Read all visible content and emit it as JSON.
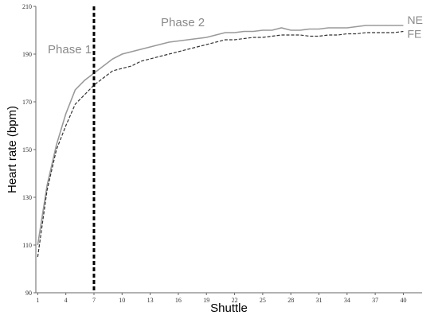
{
  "chart_data": {
    "type": "line",
    "title": "",
    "xlabel": "Shuttle",
    "ylabel": "Heart rate (bpm)",
    "x": [
      1,
      2,
      3,
      4,
      5,
      6,
      7,
      8,
      9,
      10,
      11,
      12,
      13,
      14,
      15,
      16,
      17,
      18,
      19,
      20,
      21,
      22,
      23,
      24,
      25,
      26,
      27,
      28,
      29,
      30,
      31,
      32,
      33,
      34,
      35,
      36,
      37,
      38,
      39,
      40
    ],
    "xticks": [
      1,
      4,
      7,
      10,
      13,
      16,
      19,
      22,
      25,
      28,
      31,
      34,
      37,
      40
    ],
    "yticks": [
      90,
      110,
      130,
      150,
      170,
      190,
      210
    ],
    "xlim": [
      0.8,
      42
    ],
    "ylim": [
      90,
      210
    ],
    "grid": false,
    "series": [
      {
        "name": "NE",
        "color": "#9a9a9a",
        "style": "solid",
        "values": [
          110,
          135,
          152,
          165,
          175,
          179,
          182,
          185,
          188,
          190,
          191,
          192,
          193,
          194,
          195,
          195.5,
          196,
          196.5,
          197,
          198,
          199,
          199,
          199.5,
          199.5,
          200,
          200,
          201,
          200,
          200,
          200.5,
          200.5,
          201,
          201,
          201,
          201.5,
          202,
          202,
          202,
          202,
          202
        ]
      },
      {
        "name": "FE",
        "color": "#333333",
        "style": "dashed",
        "values": [
          105,
          133,
          150,
          160,
          169,
          173,
          177,
          180,
          183,
          184,
          185,
          187,
          188,
          189,
          190,
          191,
          192,
          193,
          194,
          195,
          196,
          196,
          196.5,
          197,
          197,
          197.5,
          198,
          198,
          198,
          197.5,
          197.5,
          198,
          198,
          198.5,
          198.5,
          199,
          199,
          199,
          199,
          199.5
        ]
      }
    ],
    "annotations": [
      {
        "text": "Phase 1"
      },
      {
        "text": "Phase 2"
      }
    ],
    "phase_boundary_x": 7
  }
}
